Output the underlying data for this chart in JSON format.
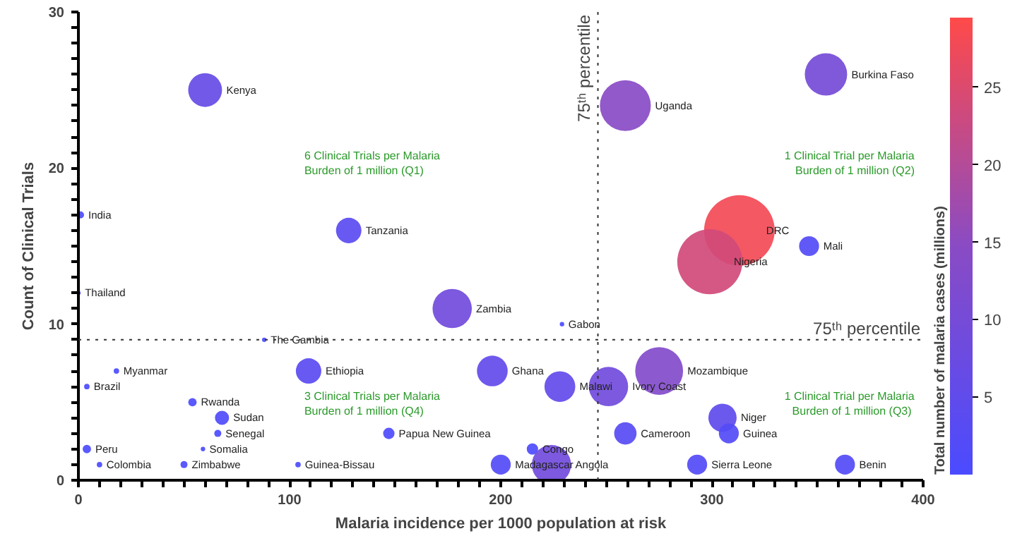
{
  "chart_data": {
    "type": "bubble",
    "xlabel": "Malaria incidence per 1000 population at risk",
    "ylabel": "Count of Clinical Trials",
    "clabel": "Total number of malaria cases (millions)",
    "x": [
      60,
      1,
      128,
      259,
      354,
      313,
      299,
      346,
      0,
      177,
      88,
      229,
      18,
      4,
      109,
      196,
      228,
      251,
      275,
      54,
      68,
      305,
      66,
      147,
      259,
      308,
      4,
      59,
      215,
      10,
      50,
      104,
      200,
      224,
      293,
      363
    ],
    "values": [
      25,
      17,
      16,
      24,
      26,
      16,
      14,
      15,
      12,
      11,
      9,
      10,
      7,
      6,
      7,
      7,
      6,
      6,
      7,
      5,
      4,
      4,
      3,
      3,
      3,
      3,
      2,
      2,
      2,
      1,
      1,
      1,
      1,
      1,
      1,
      1
    ],
    "sizes": [
      0.23,
      0.01,
      0.13,
      0.52,
      0.36,
      1,
      0.85,
      0.08,
      0.004,
      0.31,
      0.004,
      0.004,
      0.006,
      0.006,
      0.13,
      0.19,
      0.19,
      0.31,
      0.46,
      0.014,
      0.04,
      0.16,
      0.01,
      0.026,
      0.1,
      0.08,
      0.014,
      0.004,
      0.026,
      0.006,
      0.01,
      0.006,
      0.08,
      0.31,
      0.08,
      0.08
    ],
    "cvalues": [
      6.5,
      0.3,
      3.6,
      14.5,
      10,
      28,
      23.7,
      2.2,
      0.1,
      8.8,
      0.1,
      0.1,
      0.2,
      0.2,
      3.6,
      5.4,
      5.4,
      8.8,
      13,
      0.4,
      1.1,
      4.5,
      0.3,
      0.7,
      2.9,
      2.2,
      0.4,
      0.1,
      0.7,
      0.2,
      0.3,
      0.2,
      2.2,
      8.8,
      2.2,
      2.2
    ],
    "clim": [
      0,
      29.5
    ],
    "cticks": [
      5,
      10,
      15,
      20,
      25
    ],
    "xlim": [
      0,
      400
    ],
    "ylim": [
      0,
      30
    ],
    "xticks": [
      0,
      {
        "value": 10,
        "label": null
      },
      {
        "value": 20,
        "label": null
      },
      {
        "value": 30,
        "label": null
      },
      {
        "value": 40,
        "label": null
      },
      {
        "value": 50,
        "label": null
      },
      {
        "value": 60,
        "label": null
      },
      {
        "value": 70,
        "label": null
      },
      {
        "value": 80,
        "label": null
      },
      {
        "value": 90,
        "label": null
      },
      100,
      {
        "value": 110,
        "label": null
      },
      {
        "value": 120,
        "label": null
      },
      {
        "value": 130,
        "label": null
      },
      {
        "value": 140,
        "label": null
      },
      {
        "value": 150,
        "label": null
      },
      {
        "value": 160,
        "label": null
      },
      {
        "value": 170,
        "label": null
      },
      {
        "value": 180,
        "label": null
      },
      {
        "value": 190,
        "label": null
      },
      200,
      {
        "value": 210,
        "label": null
      },
      {
        "value": 220,
        "label": null
      },
      {
        "value": 230,
        "label": null
      },
      {
        "value": 240,
        "label": null
      },
      {
        "value": 250,
        "label": null
      },
      {
        "value": 260,
        "label": null
      },
      {
        "value": 270,
        "label": null
      },
      {
        "value": 280,
        "label": null
      },
      {
        "value": 290,
        "label": null
      },
      300,
      {
        "value": 310,
        "label": null
      },
      {
        "value": 320,
        "label": null
      },
      {
        "value": 330,
        "label": null
      },
      {
        "value": 340,
        "label": null
      },
      {
        "value": 350,
        "label": null
      },
      {
        "value": 360,
        "label": null
      },
      {
        "value": 370,
        "label": null
      },
      {
        "value": 380,
        "label": null
      },
      {
        "value": 390,
        "label": null
      },
      400
    ],
    "yticks": [
      0,
      {
        "value": 1,
        "label": null
      },
      {
        "value": 2,
        "label": null
      },
      {
        "value": 3,
        "label": null
      },
      {
        "value": 4,
        "label": null
      },
      {
        "value": 5,
        "label": null
      },
      {
        "value": 6,
        "label": null
      },
      {
        "value": 7,
        "label": null
      },
      {
        "value": 8,
        "label": null
      },
      {
        "value": 9,
        "label": null
      },
      10,
      {
        "value": 11,
        "label": null
      },
      {
        "value": 12,
        "label": null
      },
      {
        "value": 13,
        "label": null
      },
      {
        "value": 14,
        "label": null
      },
      {
        "value": 15,
        "label": null
      },
      {
        "value": 16,
        "label": null
      },
      {
        "value": 17,
        "label": null
      },
      {
        "value": 18,
        "label": null
      },
      {
        "value": 19,
        "label": null
      },
      20,
      {
        "value": 21,
        "label": null
      },
      {
        "value": 22,
        "label": null
      },
      {
        "value": 23,
        "label": null
      },
      {
        "value": 24,
        "label": null
      },
      {
        "value": 25,
        "label": null
      },
      {
        "value": 26,
        "label": null
      },
      {
        "value": 27,
        "label": null
      },
      {
        "value": 28,
        "label": null
      },
      {
        "value": 29,
        "label": null
      },
      30
    ],
    "ref_lines": [
      {
        "axis": "x",
        "value": 246,
        "label": "75ᵗʰ percentile",
        "line_style": "dotted"
      },
      {
        "axis": "y",
        "value": 9,
        "label": "75ᵗʰ percentile",
        "line_style": "dotted"
      }
    ],
    "annotations": [
      {
        "text": "Kenya",
        "x": 60,
        "y": 25
      },
      {
        "text": "India",
        "x": 1,
        "y": 17
      },
      {
        "text": "Tanzania",
        "x": 128,
        "y": 16
      },
      {
        "text": "Uganda",
        "x": 259,
        "y": 24
      },
      {
        "text": "Burkina Faso",
        "x": 354,
        "y": 26
      },
      {
        "text": "DRC",
        "x": 313,
        "y": 16
      },
      {
        "text": "Nigeria",
        "x": 299,
        "y": 14
      },
      {
        "text": "Mali",
        "x": 346,
        "y": 15
      },
      {
        "text": "Thailand",
        "x": 0,
        "y": 12
      },
      {
        "text": "Zambia",
        "x": 177,
        "y": 11
      },
      {
        "text": "The Gambia",
        "x": 88,
        "y": 9
      },
      {
        "text": "Gabon",
        "x": 229,
        "y": 10
      },
      {
        "text": "Myanmar",
        "x": 18,
        "y": 7
      },
      {
        "text": "Brazil",
        "x": 4,
        "y": 6
      },
      {
        "text": "Ethiopia",
        "x": 109,
        "y": 7
      },
      {
        "text": "Ghana",
        "x": 196,
        "y": 7
      },
      {
        "text": "Malawi",
        "x": 228,
        "y": 6
      },
      {
        "text": "Ivory Coast",
        "x": 251,
        "y": 6
      },
      {
        "text": "Mozambique",
        "x": 275,
        "y": 7
      },
      {
        "text": "Rwanda",
        "x": 54,
        "y": 5
      },
      {
        "text": "Sudan",
        "x": 68,
        "y": 4
      },
      {
        "text": "Niger",
        "x": 305,
        "y": 4
      },
      {
        "text": "Senegal",
        "x": 66,
        "y": 3
      },
      {
        "text": "Papua New Guinea",
        "x": 147,
        "y": 3
      },
      {
        "text": "Cameroon",
        "x": 259,
        "y": 3
      },
      {
        "text": "Guinea",
        "x": 308,
        "y": 3
      },
      {
        "text": "Peru",
        "x": 4,
        "y": 2
      },
      {
        "text": "Somalia",
        "x": 59,
        "y": 2
      },
      {
        "text": "Congo",
        "x": 215,
        "y": 2
      },
      {
        "text": "Colombia",
        "x": 10,
        "y": 1
      },
      {
        "text": "Zimbabwe",
        "x": 50,
        "y": 1
      },
      {
        "text": "Guinea-Bissau",
        "x": 104,
        "y": 1
      },
      {
        "text": "Madagascar",
        "x": 200,
        "y": 1
      },
      {
        "text": "Angola",
        "x": 224,
        "y": 1
      },
      {
        "text": "Sierra Leone",
        "x": 293,
        "y": 1
      },
      {
        "text": "Benin",
        "x": 363,
        "y": 1
      },
      "6 Clinical Trials per Malaria\nBurden of 1 million (Q1)",
      "1 Clinical Trial per Malaria\nBurden of 1 million (Q2)",
      "3 Clinical Trials per Malaria\nBurden of 1 million (Q4)",
      "1 Clinical Trial per Malaria\nBurden of  1 million (Q3)"
    ],
    "grid": false
  }
}
